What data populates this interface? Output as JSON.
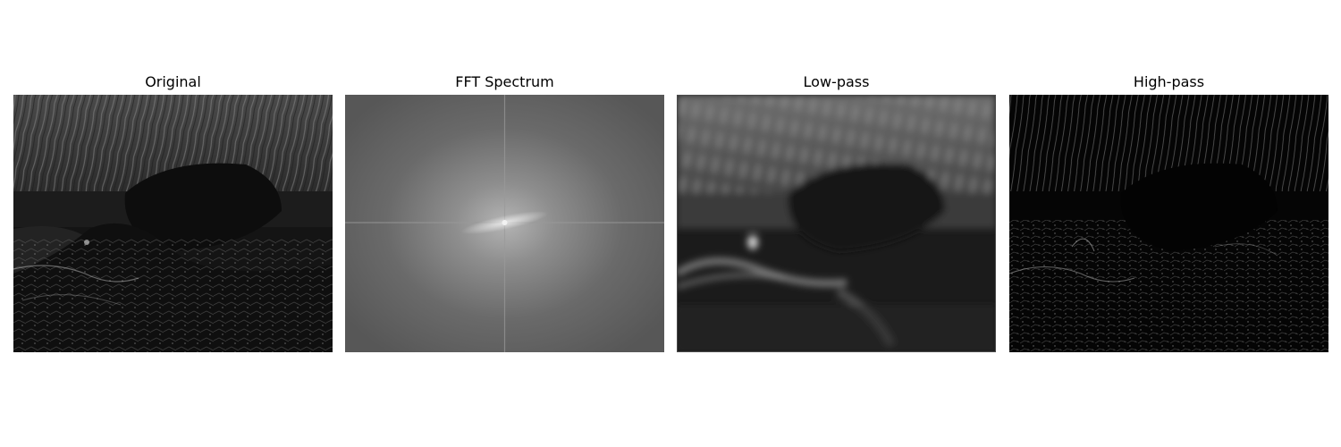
{
  "panels": [
    {
      "id": "original",
      "title": "Original"
    },
    {
      "id": "fft",
      "title": "FFT Spectrum"
    },
    {
      "id": "lowpass",
      "title": "Low-pass"
    },
    {
      "id": "highpass",
      "title": "High-pass"
    }
  ]
}
